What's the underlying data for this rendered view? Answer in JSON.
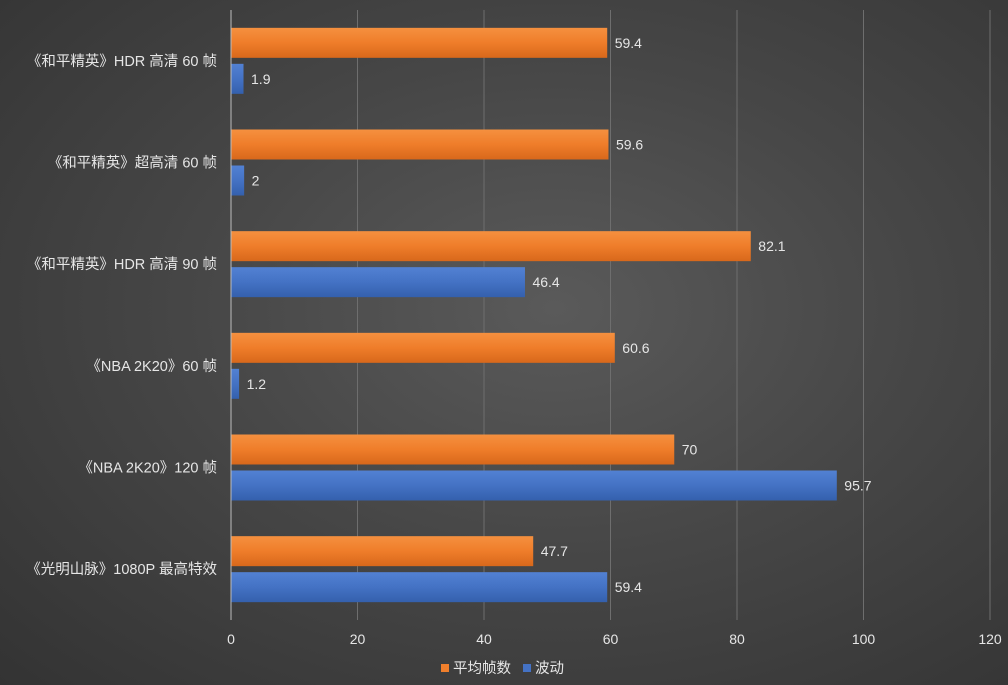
{
  "chart_data": {
    "type": "bar",
    "orientation": "horizontal",
    "categories": [
      "《和平精英》HDR 高清 60 帧",
      "《和平精英》超高清 60 帧",
      "《和平精英》HDR 高清 90 帧",
      "《NBA 2K20》60 帧",
      "《NBA 2K20》120 帧",
      "《光明山脉》1080P 最高特效"
    ],
    "series": [
      {
        "name": "平均帧数",
        "values": [
          59.4,
          59.6,
          82.1,
          60.6,
          70,
          47.7
        ],
        "color": "#f07f2c"
      },
      {
        "name": "波动",
        "values": [
          1.9,
          2,
          46.4,
          1.2,
          95.7,
          59.4
        ],
        "color": "#4472c4"
      }
    ],
    "value_labels": [
      [
        "59.4",
        "59.6",
        "82.1",
        "60.6",
        "70",
        "47.7"
      ],
      [
        "1.9",
        "2",
        "46.4",
        "1.2",
        "95.7",
        "59.4"
      ]
    ],
    "xlim": [
      0,
      120
    ],
    "xticks": [
      "0",
      "20",
      "40",
      "60",
      "80",
      "100",
      "120"
    ],
    "xtick_values": [
      0,
      20,
      40,
      60,
      80,
      100,
      120
    ],
    "grid": true,
    "legend_position": "bottom"
  }
}
